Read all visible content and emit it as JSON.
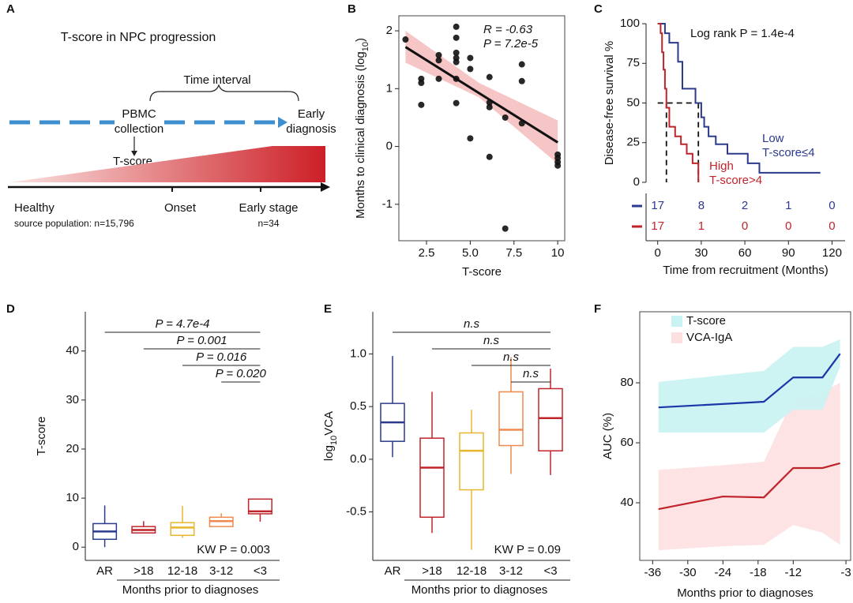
{
  "diagram": {
    "panel": "A",
    "title": "T-score in NPC progression",
    "interval": "Time interval",
    "collection": [
      "PBMC",
      "collection"
    ],
    "diagnosis": [
      "Early",
      "diagnosis"
    ],
    "score": "T-score",
    "stages": [
      "Healthy",
      "Onset",
      "Early stage"
    ],
    "population": "source population: n=15,796",
    "sample": "n=34"
  },
  "chart_data": [
    {
      "panel": "B",
      "type": "scatter",
      "x_label": "T-score",
      "y_label": "Months to clinical diagnosis  (log",
      "y_label_sub": "10",
      "y_label_end": ")",
      "annotations": [
        "R = -0.63",
        "P = 7.2e-5"
      ],
      "color": "#111111",
      "x": [
        1.3,
        2.2,
        2.2,
        2.2,
        3.2,
        3.2,
        3.2,
        4.2,
        4.2,
        4.2,
        4.2,
        4.2,
        4.2,
        4.2,
        5.0,
        5.0,
        5.0,
        6.1,
        6.1,
        6.1,
        6.1,
        7.0,
        7.0,
        7.95,
        7.95,
        7.95,
        10,
        10,
        10,
        10
      ],
      "y": [
        1.85,
        1.17,
        1.1,
        0.72,
        1.58,
        1.49,
        1.17,
        2.07,
        1.88,
        1.62,
        1.53,
        1.46,
        1.17,
        0.75,
        1.53,
        1.34,
        0.14,
        1.2,
        0.76,
        0.68,
        -0.18,
        0.5,
        -1.42,
        1.42,
        1.13,
        0.4,
        -0.14,
        -0.2,
        -0.27,
        -0.33
      ],
      "fit": {
        "x": [
          1.3,
          10
        ],
        "y": [
          1.72,
          0.07
        ],
        "color": "#111111"
      },
      "band": {
        "x": [
          1.3,
          5.5,
          10
        ],
        "lower": [
          1.45,
          0.85,
          -0.3
        ],
        "upper": [
          2.0,
          1.1,
          0.45
        ],
        "color": "#f4bcbc"
      },
      "xlim": [
        0.92,
        10.4
      ],
      "ylim": [
        -1.63,
        2.26
      ],
      "xticks": [
        2.5,
        {
          "value": 5,
          "label": "5.0"
        },
        7.5,
        10
      ],
      "yticks": [
        -1,
        0,
        1,
        2
      ]
    },
    {
      "panel": "C",
      "type": "survival",
      "x_label": "Time from recruitment (Months)",
      "y_label": "Disease-free survival %",
      "annotation": "Log rank  P = 1.4e-4",
      "series": [
        {
          "name": "Low",
          "label": "T-score≤4",
          "color": "#2b3a8c",
          "x": [
            0,
            5,
            8,
            14,
            17,
            26,
            30,
            32,
            35,
            40,
            48,
            62,
            70,
            112
          ],
          "values": [
            100,
            94,
            88,
            76,
            59,
            50,
            41,
            35,
            29,
            24,
            18,
            12,
            6,
            6
          ],
          "at_risk": [
            17,
            8,
            2,
            1,
            0
          ]
        },
        {
          "name": "High",
          "label": "T-score>4",
          "color": "#c0242b",
          "x": [
            0,
            2,
            3,
            4,
            5,
            6,
            8,
            12,
            16,
            20,
            24,
            28
          ],
          "values": [
            100,
            94,
            82,
            71,
            59,
            47,
            35,
            29,
            24,
            18,
            12,
            0
          ],
          "at_risk": [
            17,
            1,
            0,
            0,
            0
          ]
        }
      ],
      "median_x": [
        6,
        28
      ],
      "median_y": 50,
      "xlim": [
        -8,
        129
      ],
      "ylim": [
        -5,
        105
      ],
      "xticks": [
        0,
        30,
        60,
        90,
        120
      ],
      "yticks": [
        0,
        25,
        50,
        75,
        100
      ]
    },
    {
      "panel": "D",
      "type": "box",
      "x_label": "Months prior to diagnoses",
      "y_label": "T-score",
      "categories": [
        "AR",
        ">18",
        "12-18",
        "3-12",
        "<3"
      ],
      "boxes": [
        {
          "whisker_low": 0,
          "q1": 1.6,
          "median": 3.2,
          "q3": 4.8,
          "whisker_high": 8.5,
          "color": "#2b3a8c"
        },
        {
          "whisker_low": 2.9,
          "q1": 2.9,
          "median": 3.5,
          "q3": 4.2,
          "whisker_high": 5.3,
          "color": "#c0242b"
        },
        {
          "whisker_low": 1.9,
          "q1": 2.4,
          "median": 4.0,
          "q3": 5.0,
          "whisker_high": 8.4,
          "color": "#e8b52f"
        },
        {
          "whisker_low": 4.2,
          "q1": 4.2,
          "median": 5.3,
          "q3": 6.1,
          "whisker_high": 6.9,
          "color": "#ef8a4e"
        },
        {
          "whisker_low": 5.2,
          "q1": 6.8,
          "median": 7.3,
          "q3": 9.8,
          "whisker_high": 9.8,
          "color": "#c0242b"
        }
      ],
      "comparisons": [
        {
          "groups": [
            "AR",
            "<3"
          ],
          "label": "P = 4.7e-4"
        },
        {
          "groups": [
            ">18",
            "<3"
          ],
          "label": "P = 0.001"
        },
        {
          "groups": [
            "12-18",
            "<3"
          ],
          "label": "P = 0.016"
        },
        {
          "groups": [
            "3-12",
            "<3"
          ],
          "label": "P = 0.020"
        }
      ],
      "kw": "KW P = 0.003",
      "ylim": [
        -2.7,
        48
      ],
      "yticks": [
        0,
        10,
        20,
        30,
        40
      ]
    },
    {
      "panel": "E",
      "type": "box",
      "x_label": "Months prior to diagnoses",
      "y_label": "log",
      "y_label_sub": "10",
      "y_label_end": "VCA",
      "categories": [
        "AR",
        ">18",
        "12-18",
        "3-12",
        "<3"
      ],
      "boxes": [
        {
          "whisker_low": 0.02,
          "q1": 0.17,
          "median": 0.35,
          "q3": 0.53,
          "whisker_high": 0.98,
          "color": "#2b3a8c"
        },
        {
          "whisker_low": -0.7,
          "q1": -0.55,
          "median": -0.08,
          "q3": 0.2,
          "whisker_high": 0.64,
          "color": "#c0242b"
        },
        {
          "whisker_low": -0.86,
          "q1": -0.29,
          "median": 0.08,
          "q3": 0.25,
          "whisker_high": 0.47,
          "color": "#e8b52f"
        },
        {
          "whisker_low": -0.14,
          "q1": 0.13,
          "median": 0.28,
          "q3": 0.64,
          "whisker_high": 0.97,
          "color": "#ef8a4e"
        },
        {
          "whisker_low": -0.15,
          "q1": 0.08,
          "median": 0.39,
          "q3": 0.67,
          "whisker_high": 0.86,
          "color": "#c0242b"
        }
      ],
      "comparisons": [
        {
          "groups": [
            "AR",
            "<3"
          ],
          "label": "n.s"
        },
        {
          "groups": [
            ">18",
            "<3"
          ],
          "label": "n.s"
        },
        {
          "groups": [
            "12-18",
            "<3"
          ],
          "label": "n.s"
        },
        {
          "groups": [
            "3-12",
            "<3"
          ],
          "label": "n.s"
        }
      ],
      "kw": "KW P = 0.09",
      "ylim": [
        -0.96,
        1.4
      ],
      "yticks": [
        -0.5,
        {
          "value": 0,
          "label": "0.0"
        },
        0.5,
        {
          "value": 1,
          "label": "1.0"
        }
      ]
    },
    {
      "panel": "F",
      "type": "line_band",
      "x_label": "Months prior to diagnoses",
      "y_label": "AUC (%)",
      "series": [
        {
          "name": "VCA-IgA",
          "color": "#c0242b",
          "band_color": "#fde0e0",
          "x": [
            -35,
            -24,
            -17,
            -12,
            -7,
            -4
          ],
          "values": [
            37.9,
            42.1,
            41.8,
            51.6,
            51.6,
            53.2
          ],
          "lower": [
            24.2,
            25.5,
            26,
            32.6,
            30,
            26
          ],
          "upper": [
            51,
            52.5,
            53.7,
            74.7,
            77,
            80
          ]
        },
        {
          "name": "T-score",
          "color": "#1a36a8",
          "band_color": "#c9f2f2",
          "x": [
            -35,
            -17,
            -12,
            -7,
            -4
          ],
          "values": [
            71.8,
            73.7,
            81.8,
            81.8,
            89.7
          ],
          "lower": [
            63.4,
            63.4,
            71,
            71,
            85.3
          ],
          "upper": [
            80.3,
            84,
            92,
            92,
            94.5
          ]
        }
      ],
      "legend_order": [
        "T-score",
        "VCA-IgA"
      ],
      "xlim": [
        -38.2,
        -2.2
      ],
      "ylim": [
        20.8,
        103.7
      ],
      "xticks": [
        -36,
        -30,
        -24,
        -18,
        -12,
        -3
      ],
      "yticks": [
        40,
        60,
        80
      ]
    }
  ]
}
